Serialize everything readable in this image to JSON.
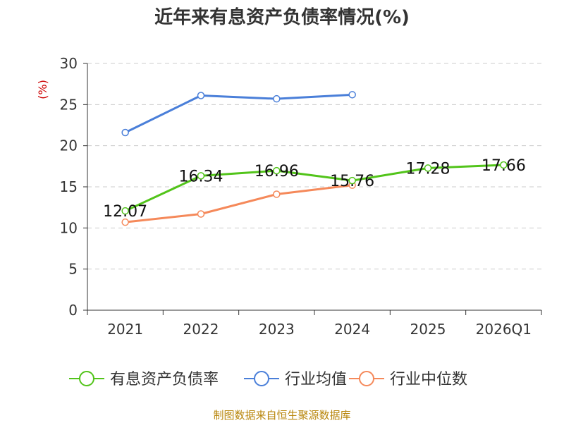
{
  "chart_data": {
    "type": "line",
    "title": "近年来有息资产负债率情况(%)",
    "ylabel": "(%)",
    "xlabel": "",
    "categories": [
      "2021",
      "2022",
      "2023",
      "2024",
      "2025",
      "2026Q1"
    ],
    "ylim": [
      0,
      30
    ],
    "yticks": [
      0,
      5,
      10,
      15,
      20,
      25,
      30
    ],
    "grid": true,
    "legend_position": "bottom",
    "series": [
      {
        "name": "有息资产负债率",
        "color": "#52c41a",
        "values": [
          12.07,
          16.34,
          16.96,
          15.76,
          17.28,
          17.66
        ],
        "labels": [
          "12.07",
          "16.34",
          "16.96",
          "15.76",
          "17.28",
          "17.66"
        ]
      },
      {
        "name": "行业均值",
        "color": "#4a7fd9",
        "values": [
          21.6,
          26.1,
          25.7,
          26.2,
          null,
          null
        ]
      },
      {
        "name": "行业中位数",
        "color": "#f5895a",
        "values": [
          10.7,
          11.7,
          14.1,
          15.2,
          null,
          null
        ]
      }
    ]
  },
  "source_note": "制图数据来自恒生聚源数据库"
}
